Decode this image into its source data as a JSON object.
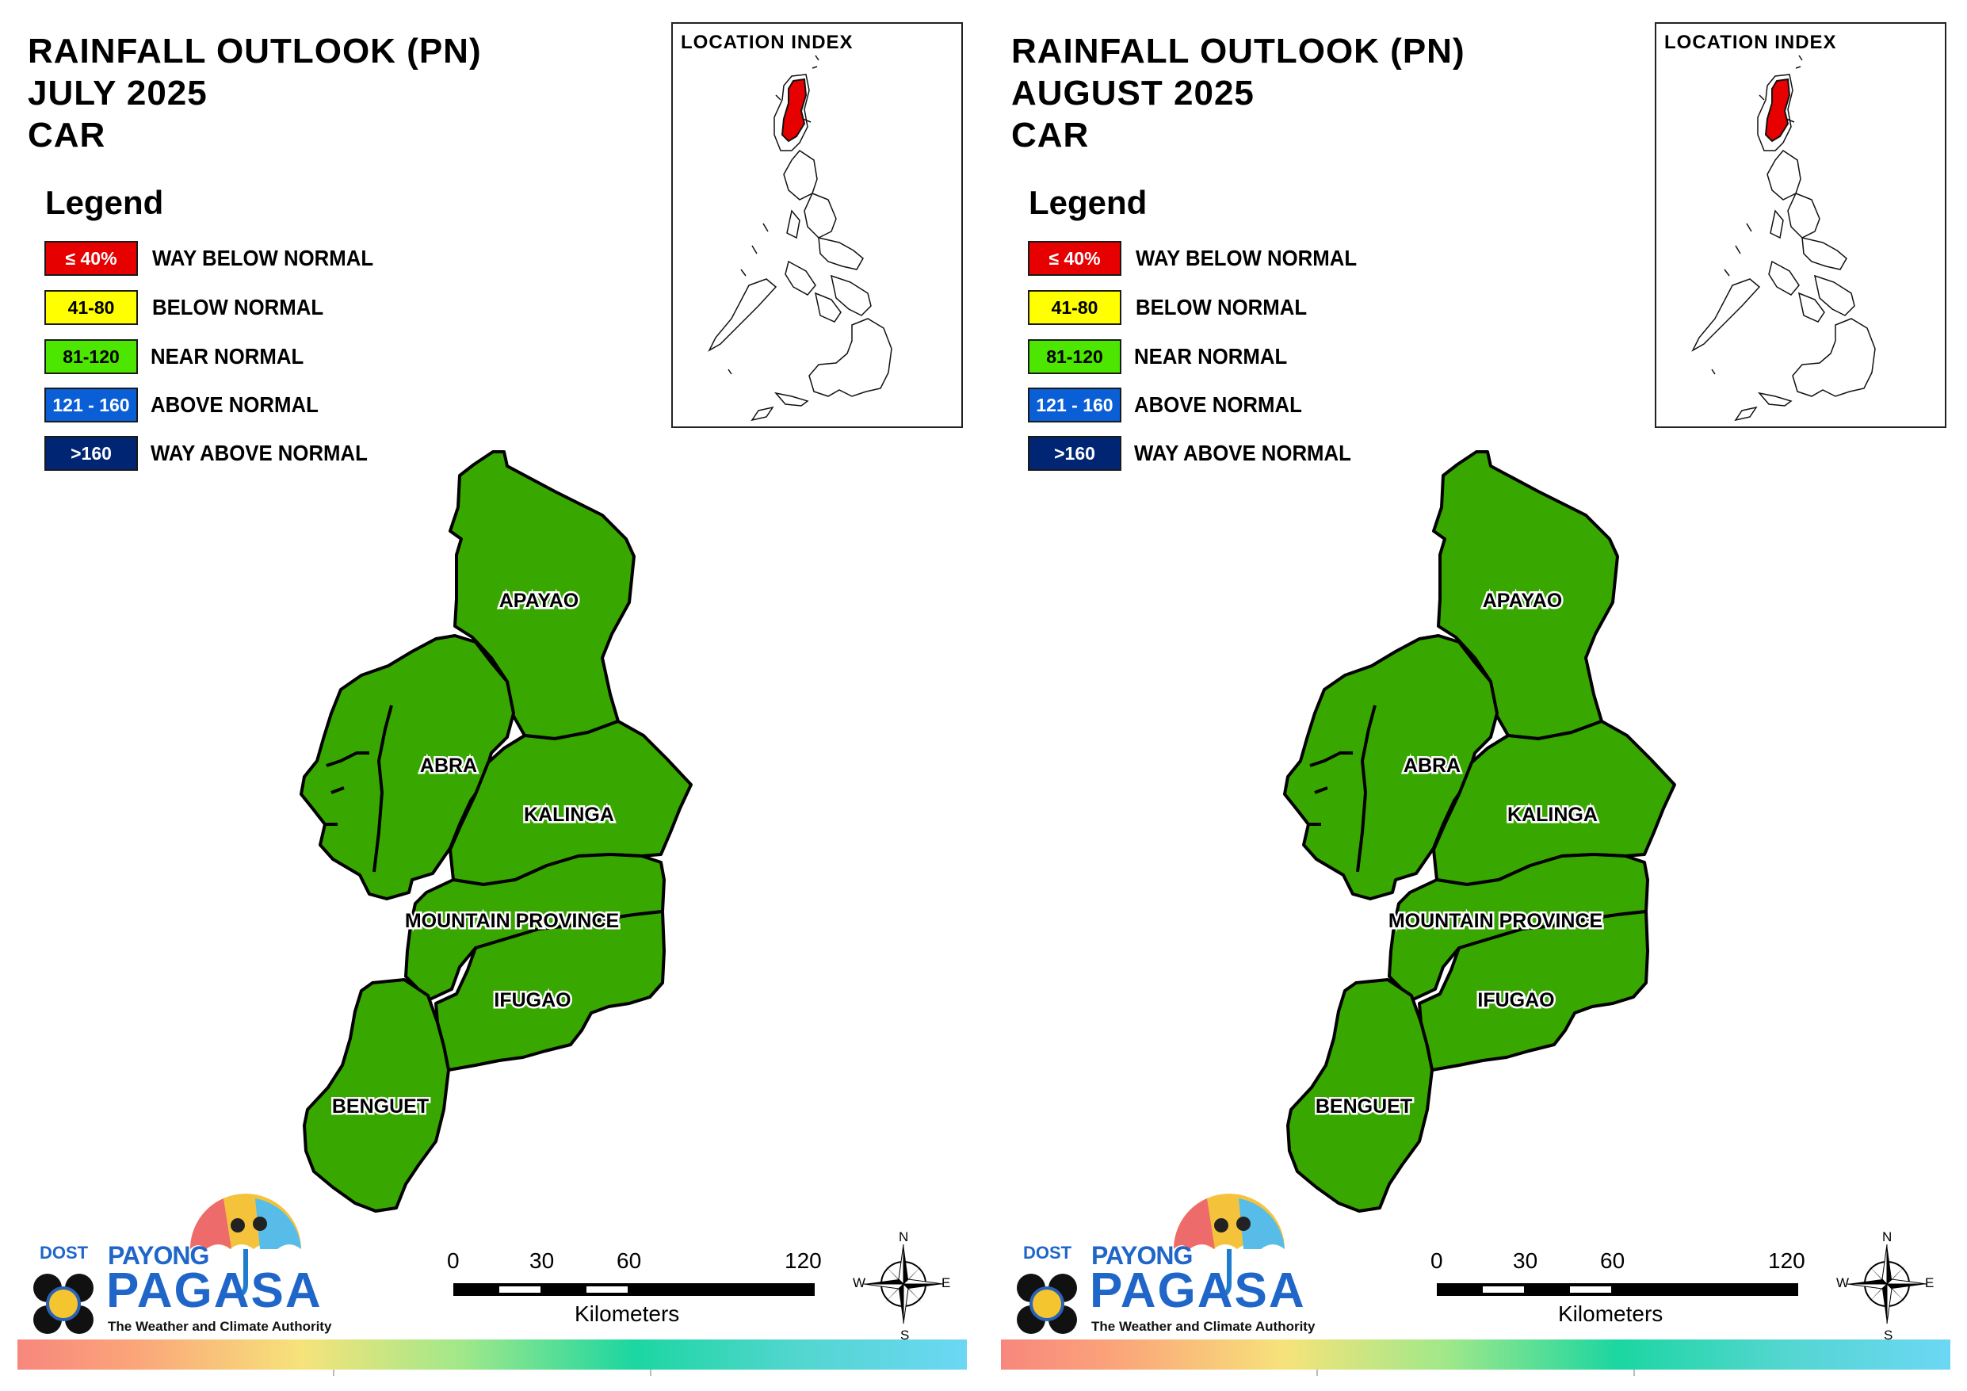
{
  "panels": [
    {
      "title_line1": "RAINFALL OUTLOOK (PN)",
      "title_line2": "JULY 2025",
      "title_line3": "CAR"
    },
    {
      "title_line1": "RAINFALL OUTLOOK (PN)",
      "title_line2": "AUGUST 2025",
      "title_line3": "CAR"
    }
  ],
  "legend": {
    "title": "Legend",
    "items": [
      {
        "range": "≤ 40%",
        "label": "WAY BELOW NORMAL",
        "color": "#e60000",
        "text_color": "#ffffff"
      },
      {
        "range": "41-80",
        "label": "BELOW NORMAL",
        "color": "#ffff00",
        "text_color": "#000000"
      },
      {
        "range": "81-120",
        "label": "NEAR NORMAL",
        "color": "#4ce600",
        "text_color": "#000000"
      },
      {
        "range": "121 - 160",
        "label": "ABOVE NORMAL",
        "color": "#0a5fd6",
        "text_color": "#ffffff"
      },
      {
        "range": ">160",
        "label": "WAY ABOVE NORMAL",
        "color": "#002673",
        "text_color": "#ffffff"
      }
    ]
  },
  "inset": {
    "title": "LOCATION INDEX",
    "highlight_color": "#e60000"
  },
  "provinces": {
    "fill_color": "#38a800",
    "apayao": "APAYAO",
    "abra": "ABRA",
    "kalinga": "KALINGA",
    "mountain": "MOUNTAIN PROVINCE",
    "ifugao": "IFUGAO",
    "benguet": "BENGUET"
  },
  "logo": {
    "dost": "DOST",
    "payong": "PAYONG",
    "pagasa": "PAGASA",
    "tagline": "The Weather and Climate Authority"
  },
  "scale_bar": {
    "ticks": [
      "0",
      "30",
      "60",
      "120"
    ],
    "unit": "Kilometers"
  },
  "compass": {
    "n": "N",
    "s": "S",
    "e": "E",
    "w": "W"
  }
}
